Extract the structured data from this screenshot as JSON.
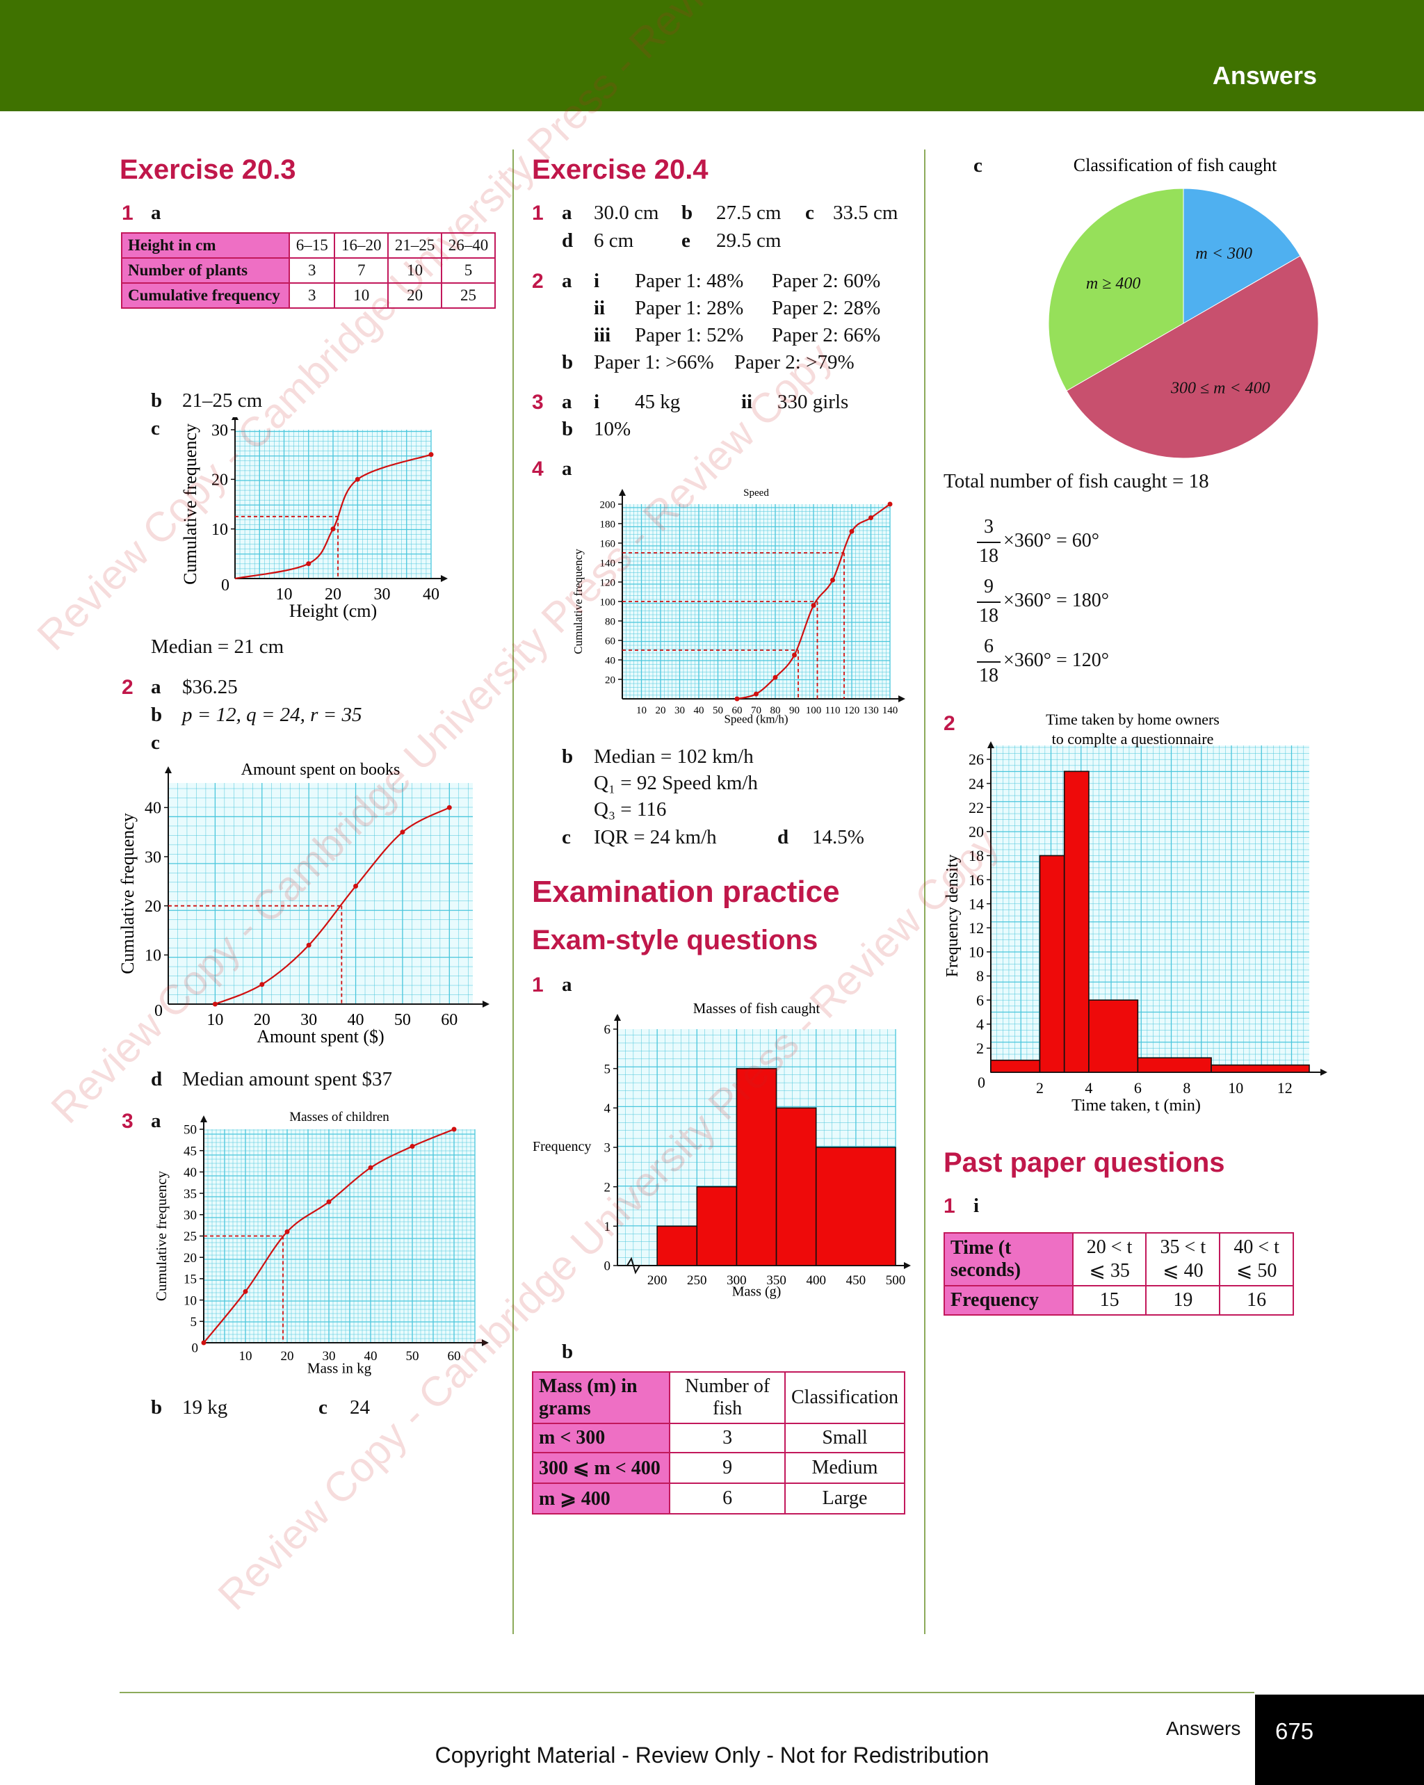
{
  "header": {
    "title": "Answers"
  },
  "ex203": {
    "title": "Exercise 20.3",
    "q1": "1",
    "q1a": "a",
    "table": {
      "rows": [
        [
          "Height in cm",
          "6–15",
          "16–20",
          "21–25",
          "26–40"
        ],
        [
          "Number of plants",
          "3",
          "7",
          "10",
          "5"
        ],
        [
          "Cumulative frequency",
          "3",
          "10",
          "20",
          "25"
        ]
      ]
    },
    "q1b_label": "b",
    "q1b": "21–25 cm",
    "q1c_label": "c",
    "median": "Median = 21 cm",
    "q2": "2",
    "q2a_label": "a",
    "q2a": "$36.25",
    "q2b_label": "b",
    "q2b": "p = 12, q = 24, r = 35",
    "q2c_label": "c",
    "q2d_label": "d",
    "q2d": "Median amount spent $37",
    "q3": "3",
    "q3a_label": "a",
    "q3b_label": "b",
    "q3b": "19 kg",
    "q3c_label": "c",
    "q3c": "24"
  },
  "ex204": {
    "title": "Exercise 20.4",
    "q1": "1",
    "q1_line1": [
      "a",
      "30.0 cm",
      "b",
      "27.5 cm",
      "c",
      "33.5 cm"
    ],
    "q1_line2": [
      "d",
      "6 cm",
      "e",
      "29.5 cm"
    ],
    "q2": "2",
    "q2_rows": [
      [
        "a",
        "i",
        "Paper 1: 48%",
        "Paper 2: 60%"
      ],
      [
        "",
        "ii",
        "Paper 1: 28%",
        "Paper 2: 28%"
      ],
      [
        "",
        "iii",
        "Paper 1: 52%",
        "Paper 2: 66%"
      ]
    ],
    "q2b": [
      "b",
      "Paper 1: >66%",
      "Paper 2: >79%"
    ],
    "q3": "3",
    "q3a": [
      "a",
      "i",
      "45 kg",
      "ii",
      "330 girls"
    ],
    "q3b": [
      "b",
      "10%"
    ],
    "q4": "4",
    "q4a_label": "a",
    "q4b_label": "b",
    "q4b_lines": [
      "Median = 102 km/h",
      "Q₁ = 92 Speed km/h",
      "Q₃ = 116"
    ],
    "q4c": [
      "c",
      "IQR = 24 km/h",
      "d",
      "14.5%"
    ]
  },
  "exam": {
    "title": "Examination practice",
    "subtitle": "Exam-style questions",
    "q1": "1",
    "q1a_label": "a",
    "q1b_label": "b",
    "table": {
      "header": [
        "Mass (m) in grams",
        "Number of fish",
        "Classification"
      ],
      "rows": [
        [
          "m < 300",
          "3",
          "Small"
        ],
        [
          "300 ⩽ m < 400",
          "9",
          "Medium"
        ],
        [
          "m ⩾ 400",
          "6",
          "Large"
        ]
      ]
    }
  },
  "right": {
    "q1c_label": "c",
    "total": "Total number of fish caught = 18",
    "fractions": [
      {
        "num": "3",
        "den": "18",
        "rest": "×360° = 60°"
      },
      {
        "num": "9",
        "den": "18",
        "rest": "×360° = 180°"
      },
      {
        "num": "6",
        "den": "18",
        "rest": "×360° = 120°"
      }
    ],
    "q2": "2",
    "past_title": "Past paper questions",
    "past_q1": "1",
    "past_q1_label": "i",
    "past_table": {
      "rows": [
        [
          "Time (t seconds)",
          "20 < t ⩽ 35",
          "35 < t ⩽ 40",
          "40 < t ⩽ 50"
        ],
        [
          "Frequency",
          "15",
          "19",
          "16"
        ]
      ]
    }
  },
  "chart_data": [
    {
      "type": "line",
      "title": "",
      "xlabel": "Height (cm)",
      "ylabel": "Cumulative frequency",
      "xlim": [
        0,
        40
      ],
      "ylim": [
        0,
        30
      ],
      "xticks": [
        "10",
        "20",
        "30",
        "40"
      ],
      "yticks": [
        "10",
        "20",
        "30"
      ],
      "origin": "0",
      "x": [
        0,
        15,
        20,
        25,
        40
      ],
      "y": [
        0,
        3,
        10,
        20,
        25
      ],
      "markers": [
        [
          15,
          3
        ],
        [
          20,
          10
        ],
        [
          25,
          20
        ],
        [
          40,
          25
        ]
      ],
      "guide": {
        "x": 21,
        "y": 12.5
      }
    },
    {
      "type": "line",
      "title": "Amount spent on books",
      "xlabel": "Amount spent ($)",
      "ylabel": "Cumulative frequency",
      "xlim": [
        0,
        65
      ],
      "ylim": [
        0,
        45
      ],
      "xticks": [
        "10",
        "20",
        "30",
        "40",
        "50",
        "60"
      ],
      "yticks": [
        "10",
        "20",
        "30",
        "40"
      ],
      "origin": "0",
      "x": [
        10,
        20,
        30,
        40,
        50,
        60
      ],
      "y": [
        0,
        4,
        12,
        24,
        35,
        40
      ],
      "guide": {
        "x": 37,
        "y": 20
      }
    },
    {
      "type": "line",
      "title": "Masses of children",
      "xlabel": "Mass in kg",
      "ylabel": "Cumulative frequency",
      "xlim": [
        0,
        65
      ],
      "ylim": [
        0,
        50
      ],
      "xticks": [
        "10",
        "20",
        "30",
        "40",
        "50",
        "60"
      ],
      "yticks": [
        "5",
        "10",
        "15",
        "20",
        "25",
        "30",
        "35",
        "40",
        "45",
        "50"
      ],
      "origin": "0",
      "x": [
        0,
        10,
        20,
        30,
        40,
        50,
        60
      ],
      "y": [
        0,
        12,
        26,
        33,
        41,
        46,
        50
      ],
      "guide": {
        "x": 19,
        "y": 25
      }
    },
    {
      "type": "line",
      "title": "Speed",
      "xlabel": "Speed (km/h)",
      "ylabel": "Cumulative frequency",
      "xlim": [
        0,
        140
      ],
      "ylim": [
        0,
        200
      ],
      "xticks": [
        "10",
        "20",
        "30",
        "40",
        "50",
        "60",
        "70",
        "80",
        "90",
        "100",
        "110",
        "120",
        "130",
        "140"
      ],
      "yticks": [
        "20",
        "40",
        "60",
        "80",
        "100",
        "120",
        "140",
        "160",
        "180",
        "200"
      ],
      "x": [
        60,
        70,
        80,
        90,
        100,
        110,
        120,
        130,
        140
      ],
      "y": [
        0,
        5,
        22,
        45,
        96,
        122,
        172,
        186,
        200
      ],
      "guides": [
        {
          "x": 92,
          "y": 50
        },
        {
          "x": 102,
          "y": 100
        },
        {
          "x": 116,
          "y": 150
        }
      ]
    },
    {
      "type": "histogram",
      "title": "Masses of fish caught",
      "xlabel": "Mass (g)",
      "ylabel": "Frequency",
      "xlim": [
        150,
        500
      ],
      "ylim": [
        0,
        6
      ],
      "xticks": [
        "200",
        "250",
        "300",
        "350",
        "400",
        "450",
        "500"
      ],
      "yticks": [
        "0",
        "1",
        "2",
        "3",
        "4",
        "5",
        "6"
      ],
      "bins": [
        [
          200,
          250,
          1
        ],
        [
          250,
          300,
          2
        ],
        [
          300,
          350,
          5
        ],
        [
          350,
          400,
          4
        ],
        [
          400,
          500,
          3
        ]
      ]
    },
    {
      "type": "pie",
      "title": "Classification of fish caught",
      "slices": [
        {
          "label": "m < 300",
          "value": 3,
          "color": "#4fb0f0"
        },
        {
          "label": "300 ≤ m < 400",
          "value": 9,
          "color": "#c8506e"
        },
        {
          "label": "m ≥ 400",
          "value": 6,
          "color": "#96e05a"
        }
      ]
    },
    {
      "type": "histogram",
      "title": "Time taken by home owners to complte a questionnaire",
      "xlabel": "Time taken, t (min)",
      "ylabel": "Frequency density",
      "xlim": [
        0,
        13
      ],
      "ylim": [
        0,
        26
      ],
      "xticks": [
        "2",
        "4",
        "6",
        "8",
        "10",
        "12"
      ],
      "yticks": [
        "2",
        "4",
        "6",
        "8",
        "10",
        "12",
        "14",
        "16",
        "18",
        "20",
        "22",
        "24",
        "26"
      ],
      "origin": "0",
      "bins": [
        [
          0,
          2,
          1
        ],
        [
          2,
          3,
          18
        ],
        [
          3,
          4,
          25
        ],
        [
          4,
          6,
          6
        ],
        [
          6,
          9,
          1.2
        ],
        [
          9,
          13,
          0.6
        ]
      ]
    }
  ],
  "footer": {
    "label": "Answers",
    "page": "675",
    "copyright": "Copyright Material  - Review Only -  Not for Redistribution"
  }
}
